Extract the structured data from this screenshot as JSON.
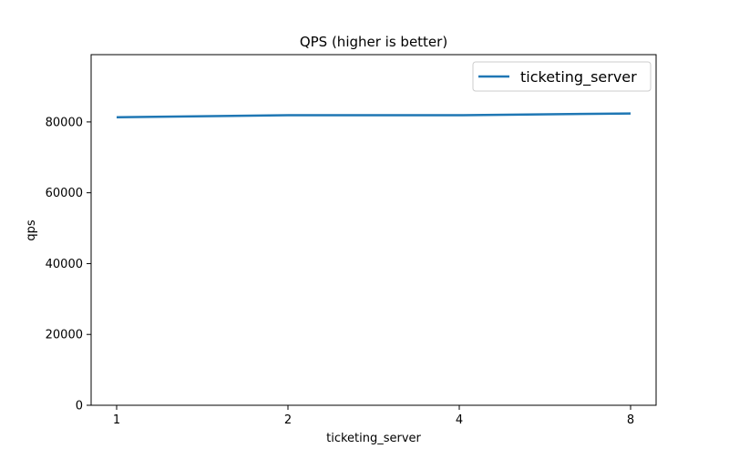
{
  "chart_data": {
    "type": "line",
    "title": "QPS (higher is better)",
    "xlabel": "ticketing_server",
    "ylabel": "qps",
    "categories": [
      "1",
      "2",
      "4",
      "8"
    ],
    "ylim": [
      0,
      99000
    ],
    "yticks": [
      0,
      20000,
      40000,
      60000,
      80000
    ],
    "grid": false,
    "legend_position": "top-right",
    "series": [
      {
        "name": "ticketing_server",
        "color": "#1f77b4",
        "values": [
          81300,
          81900,
          81900,
          82400
        ]
      }
    ]
  }
}
